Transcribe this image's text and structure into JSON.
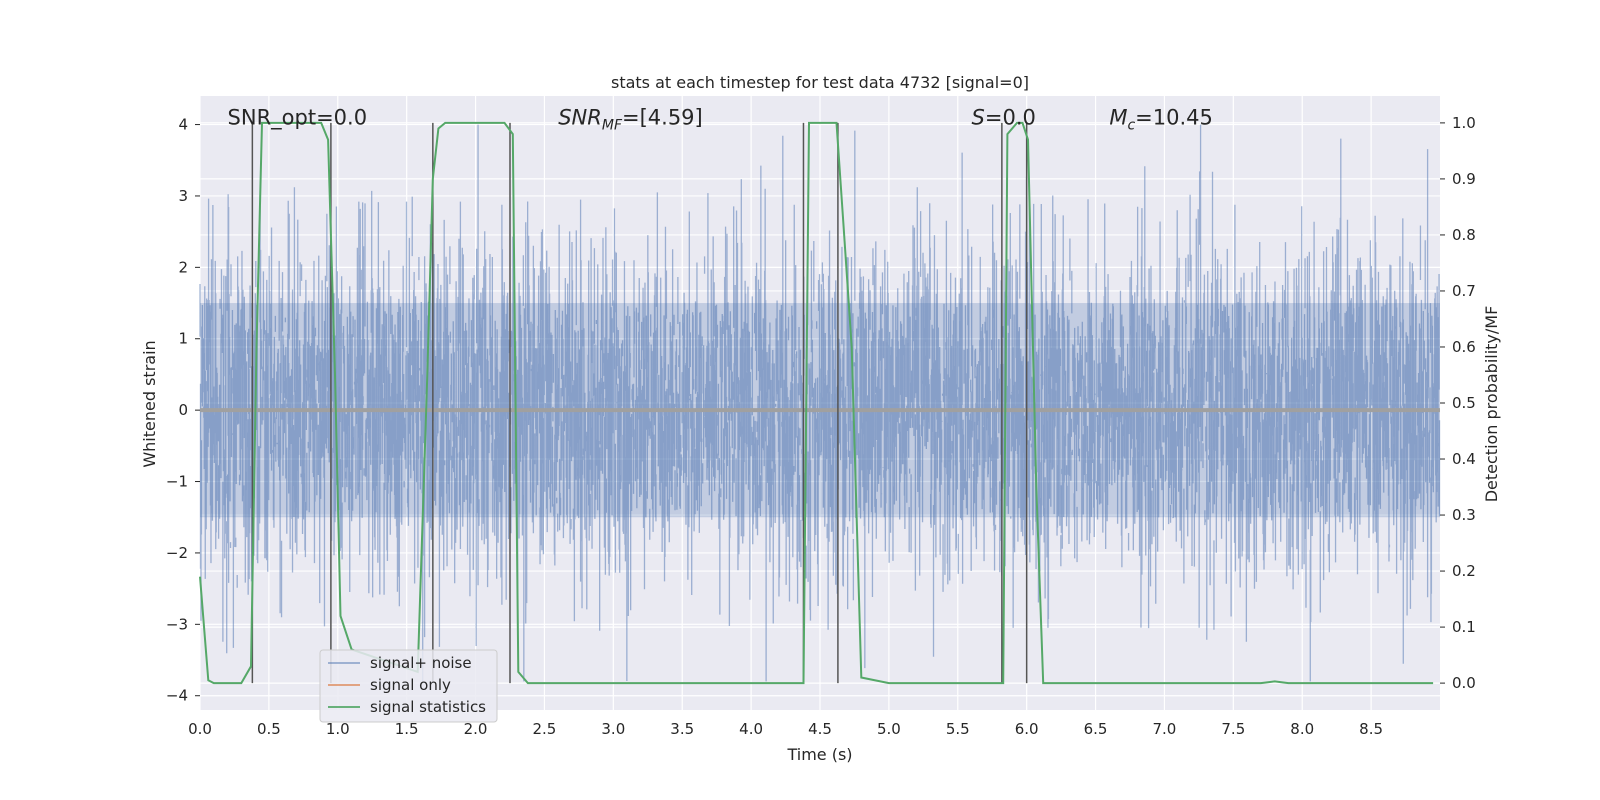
{
  "chart_data": {
    "type": "line",
    "title": "stats at each timestep for test data 4732 [signal=0]",
    "xlabel": "Time (s)",
    "ylabel": "Whitened strain",
    "y2label": "Detection probability/MF",
    "xlim": [
      0,
      9.0
    ],
    "ylim": [
      -4.2,
      4.4
    ],
    "y2lim": [
      -0.048,
      1.048
    ],
    "xticks": [
      0.0,
      0.5,
      1.0,
      1.5,
      2.0,
      2.5,
      3.0,
      3.5,
      4.0,
      4.5,
      5.0,
      5.5,
      6.0,
      6.5,
      7.0,
      7.5,
      8.0,
      8.5
    ],
    "xtick_labels": [
      "0.0",
      "0.5",
      "1.0",
      "1.5",
      "2.0",
      "2.5",
      "3.0",
      "3.5",
      "4.0",
      "4.5",
      "5.0",
      "5.5",
      "6.0",
      "6.5",
      "7.0",
      "7.5",
      "8.0",
      "8.5"
    ],
    "yticks": [
      4,
      3,
      2,
      1,
      0,
      -1,
      -2,
      -3,
      -4
    ],
    "ytick_labels": [
      "4",
      "3",
      "2",
      "1",
      "0",
      "−1",
      "−2",
      "−3",
      "−4"
    ],
    "y2ticks": [
      1.0,
      0.9,
      0.8,
      0.7,
      0.6,
      0.5,
      0.4,
      0.3,
      0.2,
      0.1,
      0.0
    ],
    "y2tick_labels": [
      "1.0",
      "0.9",
      "0.8",
      "0.7",
      "0.6",
      "0.5",
      "0.4",
      "0.3",
      "0.2",
      "0.1",
      "0.0"
    ],
    "grid": true,
    "legend_position": "lower-left",
    "annotations": [
      {
        "text": "SNR_opt=0.0",
        "x": 0.2,
        "y": 4.1
      },
      {
        "text": "SNR_MF=[4.59]",
        "x": 2.6,
        "y": 4.1,
        "main": "SNR",
        "sub": "MF",
        "suffix": "=[4.59]"
      },
      {
        "text": "S=0.0",
        "x": 5.6,
        "y": 4.1,
        "main": "S",
        "suffix": "=0.0"
      },
      {
        "text": "M_c=10.45",
        "x": 6.6,
        "y": 4.1,
        "main": "M",
        "sub": "c",
        "suffix": "=10.45"
      }
    ],
    "series": [
      {
        "name": "signal+ noise",
        "color": "#4c72b0",
        "style": "noise",
        "x_range": [
          0,
          9.0
        ],
        "y_range": [
          -3.8,
          4.0
        ]
      },
      {
        "name": "signal only",
        "color": "#dd8452",
        "values": []
      },
      {
        "name": "signal statistics",
        "color": "#55a868",
        "axis": "right",
        "x": [
          0.0,
          0.06,
          0.1,
          0.3,
          0.37,
          0.41,
          0.45,
          0.88,
          0.93,
          0.98,
          1.02,
          1.1,
          1.58,
          1.65,
          1.69,
          1.73,
          1.78,
          2.21,
          2.27,
          2.31,
          2.38,
          2.8,
          3.5,
          4.38,
          4.42,
          4.62,
          4.67,
          4.73,
          4.8,
          5.0,
          5.83,
          5.86,
          5.93,
          5.97,
          6.01,
          6.07,
          6.12,
          7.7,
          7.8,
          7.9,
          8.95
        ],
        "values": [
          0.19,
          0.005,
          0.0,
          0.0,
          0.03,
          0.6,
          1.0,
          1.0,
          0.97,
          0.55,
          0.12,
          0.06,
          0.02,
          0.55,
          0.9,
          0.99,
          1.0,
          1.0,
          0.98,
          0.02,
          0.0,
          0.0,
          0.0,
          0.0,
          1.0,
          1.0,
          0.82,
          0.6,
          0.01,
          0.0,
          0.0,
          0.98,
          1.0,
          1.0,
          0.97,
          0.35,
          0.0,
          0.0,
          0.003,
          0.0,
          0.0
        ]
      }
    ],
    "vertical_markers": {
      "color": "#555555",
      "x": [
        0.38,
        0.95,
        1.69,
        2.25,
        4.38,
        4.63,
        5.82,
        6.0
      ]
    }
  }
}
